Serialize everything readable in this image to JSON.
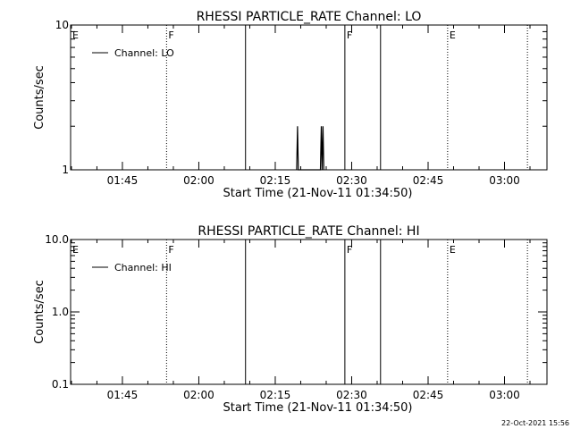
{
  "timestamp": "22-Oct-2021 15:56",
  "chart_data": [
    {
      "type": "line",
      "title": "RHESSI PARTICLE_RATE Channel: LO",
      "xlabel": "Start Time (21-Nov-11 01:34:50)",
      "ylabel": "Counts/sec",
      "y_scale": "log",
      "ylim": [
        1,
        10
      ],
      "y_ticks": [
        {
          "value": 1,
          "label": "1"
        },
        {
          "value": 10,
          "label": "10"
        }
      ],
      "xlim": [
        "01:34:50",
        "03:08:20"
      ],
      "x_ticks": [
        {
          "time": "01:45",
          "label": "01:45"
        },
        {
          "time": "02:00",
          "label": "02:00"
        },
        {
          "time": "02:15",
          "label": "02:15"
        },
        {
          "time": "02:30",
          "label": "02:30"
        },
        {
          "time": "02:45",
          "label": "02:45"
        },
        {
          "time": "03:00",
          "label": "03:00"
        }
      ],
      "legend": {
        "label": "Channel: LO",
        "placement": "top-left"
      },
      "markers": [
        {
          "time": "01:34:50",
          "label": "E",
          "style": "dotted"
        },
        {
          "time": "01:53:40",
          "label": "F",
          "style": "dotted"
        },
        {
          "time": "02:09:10",
          "label": "",
          "style": "solid"
        },
        {
          "time": "02:28:40",
          "label": "F",
          "style": "solid"
        },
        {
          "time": "02:35:40",
          "label": "",
          "style": "solid"
        },
        {
          "time": "02:48:50",
          "label": "E",
          "style": "dotted"
        },
        {
          "time": "03:04:30",
          "label": "",
          "style": "dotted"
        }
      ],
      "series": [
        {
          "values": [
            [
              "02:19:12",
              1
            ],
            [
              "02:19:22",
              2
            ],
            [
              "02:19:32",
              1
            ],
            [
              "02:23:52",
              1
            ],
            [
              "02:24:02",
              2
            ],
            [
              "02:24:12",
              1
            ],
            [
              "02:24:22",
              2
            ],
            [
              "02:24:32",
              1
            ]
          ]
        }
      ]
    },
    {
      "type": "line",
      "title": "RHESSI PARTICLE_RATE Channel: HI",
      "xlabel": "Start Time (21-Nov-11 01:34:50)",
      "ylabel": "Counts/sec",
      "y_scale": "log",
      "ylim": [
        0.1,
        10
      ],
      "y_ticks": [
        {
          "value": 0.1,
          "label": "0.1"
        },
        {
          "value": 1,
          "label": "1.0"
        },
        {
          "value": 10,
          "label": "10.0"
        }
      ],
      "xlim": [
        "01:34:50",
        "03:08:20"
      ],
      "x_ticks": [
        {
          "time": "01:45",
          "label": "01:45"
        },
        {
          "time": "02:00",
          "label": "02:00"
        },
        {
          "time": "02:15",
          "label": "02:15"
        },
        {
          "time": "02:30",
          "label": "02:30"
        },
        {
          "time": "02:45",
          "label": "02:45"
        },
        {
          "time": "03:00",
          "label": "03:00"
        }
      ],
      "legend": {
        "label": "Channel: HI",
        "placement": "top-left"
      },
      "markers": [
        {
          "time": "01:34:50",
          "label": "E",
          "style": "dotted"
        },
        {
          "time": "01:53:40",
          "label": "F",
          "style": "dotted"
        },
        {
          "time": "02:09:10",
          "label": "",
          "style": "solid"
        },
        {
          "time": "02:28:40",
          "label": "F",
          "style": "solid"
        },
        {
          "time": "02:35:40",
          "label": "",
          "style": "solid"
        },
        {
          "time": "02:48:50",
          "label": "E",
          "style": "dotted"
        },
        {
          "time": "03:04:30",
          "label": "",
          "style": "dotted"
        }
      ],
      "series": [
        {
          "values": []
        }
      ]
    }
  ]
}
